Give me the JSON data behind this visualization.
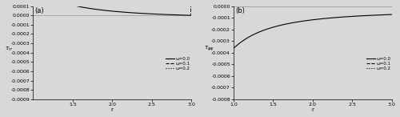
{
  "xlim": [
    1.0,
    3.0
  ],
  "panel_a": {
    "ylim": [
      -0.0009,
      0.0001
    ],
    "yticks": [
      0.0001,
      0.0,
      -0.0001,
      -0.0002,
      -0.0003,
      -0.0004,
      -0.0005,
      -0.0006,
      -0.0007,
      -0.0008,
      -0.0009
    ],
    "xticks": [
      1.5,
      2.0,
      2.5,
      3.0
    ],
    "ylabel": "T_rr",
    "xlabel": "r",
    "label": "(a)"
  },
  "panel_b": {
    "ylim": [
      -0.0008,
      0.0
    ],
    "yticks": [
      0.0,
      -0.0001,
      -0.0002,
      -0.0003,
      -0.0004,
      -0.0005,
      -0.0006,
      -0.0007,
      -0.0008
    ],
    "xticks": [
      1.0,
      1.5,
      2.0,
      2.5,
      3.0
    ],
    "ylabel": "T_pp",
    "xlabel": "r",
    "label": "(b)"
  },
  "omegas": [
    0.0,
    0.1,
    0.2
  ],
  "linestyles": [
    "solid",
    "dashed",
    "dotted"
  ],
  "legend_labels": [
    "ω=0.0",
    "ω=0.1",
    "ω=0.2"
  ],
  "line_color": "black",
  "bg_color": "#d8d8d8"
}
